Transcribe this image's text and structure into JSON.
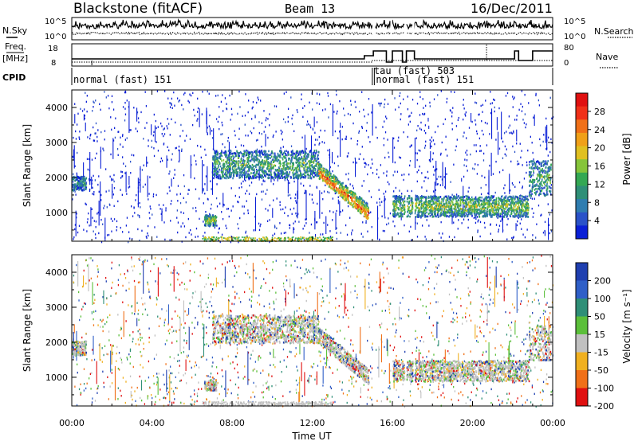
{
  "header": {
    "station": "Blackstone (fitACF)",
    "beam": "Beam 13",
    "date": "16/Dec/2011"
  },
  "top_panels": {
    "nsky_label": "N.Sky",
    "nsearch_label": "N.Search",
    "freq_label_line1": "Freq.",
    "freq_label_line2": "[MHz]",
    "nave_label": "Nave",
    "cpid_label": "CPID",
    "nsky_ticks": [
      "10^5",
      "10^0"
    ],
    "nsearch_ticks": [
      "10^5",
      "10^0"
    ],
    "freq_ticks": [
      "18",
      "8"
    ],
    "nave_ticks": [
      "80",
      "0"
    ],
    "cpid_segments": [
      {
        "label": "normal (fast) 151",
        "start_h": 0.0,
        "end_h": 15.0
      },
      {
        "label": "tau (fast) 503",
        "start_h": 15.0,
        "end_h": 15.1
      },
      {
        "label": "normal (fast) 151",
        "start_h": 15.1,
        "end_h": 24.0
      }
    ]
  },
  "x_axis": {
    "title": "Time UT",
    "ticks": [
      "00:00",
      "04:00",
      "08:00",
      "12:00",
      "16:00",
      "20:00",
      "00:00"
    ]
  },
  "chart_data": [
    {
      "type": "heatmap",
      "name": "power",
      "ylabel": "Slant Range [km]",
      "ylim": [
        180,
        4500
      ],
      "yticks": [
        "1000",
        "2000",
        "3000",
        "4000"
      ],
      "xlim_hours": [
        0,
        24
      ],
      "colorbar": {
        "title": "Power [dB]",
        "ticks": [
          "4",
          "8",
          "12",
          "16",
          "20",
          "24",
          "28"
        ],
        "colors": [
          "#0a1fd6",
          "#2a52c8",
          "#2f7db0",
          "#2f8f77",
          "#34a853",
          "#86c53a",
          "#e0c020",
          "#f0a018",
          "#f07018",
          "#f03018",
          "#e01010"
        ]
      },
      "echo_regions": [
        {
          "t": [
            0.0,
            0.7
          ],
          "range": [
            1650,
            2050
          ],
          "level": 0.35
        },
        {
          "t": [
            6.6,
            7.2
          ],
          "range": [
            650,
            950
          ],
          "level": 0.55
        },
        {
          "t": [
            7.0,
            12.3
          ],
          "range": [
            2000,
            2800
          ],
          "level": 0.45
        },
        {
          "t": [
            12.3,
            14.8
          ],
          "range": [
            800,
            2000
          ],
          "level": 0.7
        },
        {
          "t": [
            16.0,
            22.8
          ],
          "range": [
            900,
            1500
          ],
          "level": 0.55
        },
        {
          "t": [
            22.8,
            23.9
          ],
          "range": [
            1500,
            2500
          ],
          "level": 0.45
        }
      ]
    },
    {
      "type": "heatmap",
      "name": "velocity",
      "ylabel": "Slant Range [km]",
      "ylim": [
        180,
        4500
      ],
      "yticks": [
        "1000",
        "2000",
        "3000",
        "4000"
      ],
      "xlim_hours": [
        0,
        24
      ],
      "colorbar": {
        "title": "Velocity [m s⁻¹]",
        "ticks": [
          "200",
          "100",
          "50",
          "15",
          "-15",
          "-50",
          "-100",
          "-200"
        ],
        "colors": [
          "#1f3fb0",
          "#2f5fc8",
          "#2f8f77",
          "#5bbf3a",
          "#c0c0c0",
          "#f0b020",
          "#f07018",
          "#e01010"
        ]
      },
      "echo_regions": [
        {
          "t": [
            0.0,
            0.7
          ],
          "range": [
            1650,
            2050
          ],
          "level": 0.35
        },
        {
          "t": [
            6.6,
            7.2
          ],
          "range": [
            650,
            950
          ],
          "level": 0.55
        },
        {
          "t": [
            7.0,
            12.3
          ],
          "range": [
            2000,
            2800
          ],
          "level": 0.45
        },
        {
          "t": [
            12.3,
            14.8
          ],
          "range": [
            800,
            2000
          ],
          "level": 0.7
        },
        {
          "t": [
            16.0,
            22.8
          ],
          "range": [
            900,
            1500
          ],
          "level": 0.55
        },
        {
          "t": [
            22.8,
            23.9
          ],
          "range": [
            1500,
            2500
          ],
          "level": 0.45
        }
      ]
    }
  ]
}
